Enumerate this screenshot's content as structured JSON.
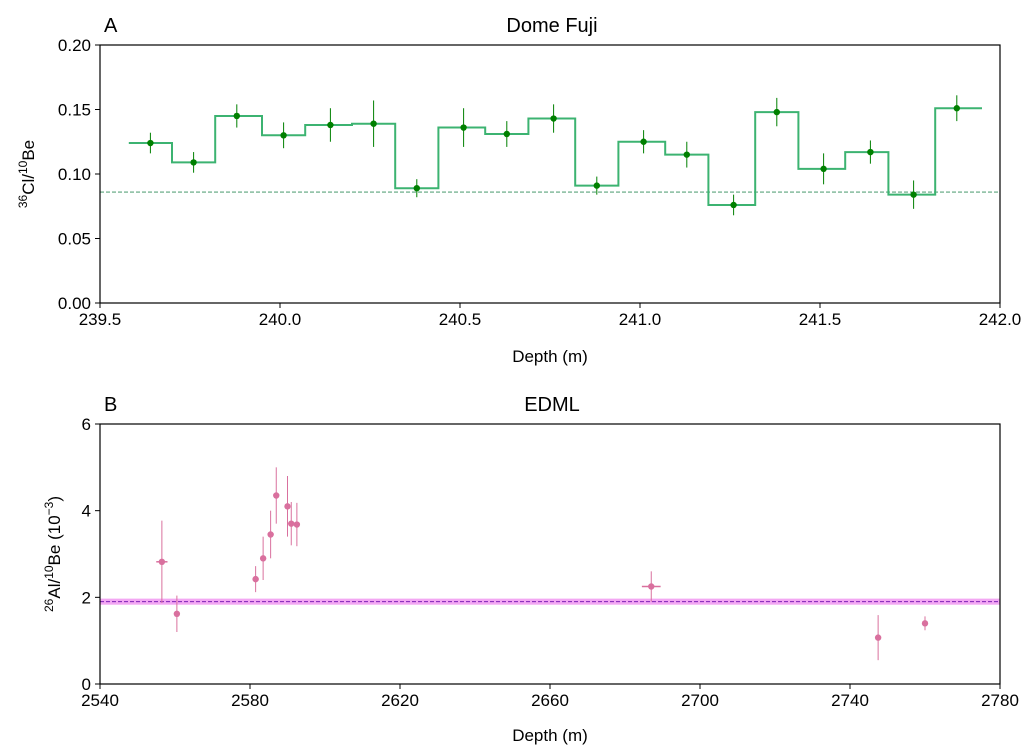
{
  "chart_data": [
    {
      "panel_label": "A",
      "type": "step-errorbar",
      "title": "Dome Fuji",
      "xlabel": "Depth (m)",
      "ylabel": {
        "sup1": "36",
        "base1": "Cl/",
        "sup2": "10",
        "base2": "Be",
        "suffix": ""
      },
      "xlim": [
        239.5,
        242.0
      ],
      "ylim": [
        0.0,
        0.2
      ],
      "xticks": [
        {
          "value": 239.5,
          "label": "239.5"
        },
        {
          "value": 240.0,
          "label": "240.0"
        },
        {
          "value": 240.5,
          "label": "240.5"
        },
        {
          "value": 241.0,
          "label": "241.0"
        },
        {
          "value": 241.5,
          "label": "241.5"
        },
        {
          "value": 242.0,
          "label": "242.0"
        }
      ],
      "yticks": [
        {
          "value": 0.0,
          "label": "0.00"
        },
        {
          "value": 0.05,
          "label": "0.05"
        },
        {
          "value": 0.1,
          "label": "0.10"
        },
        {
          "value": 0.15,
          "label": "0.15"
        },
        {
          "value": 0.2,
          "label": "0.20"
        }
      ],
      "reference_line": 0.086,
      "step_color": "#3cb371",
      "point_color": "#008000",
      "reference_color": "#2e8b57",
      "steps": [
        {
          "x0": 239.58,
          "x1": 239.7,
          "y": 0.124
        },
        {
          "x0": 239.7,
          "x1": 239.82,
          "y": 0.109
        },
        {
          "x0": 239.82,
          "x1": 239.95,
          "y": 0.145
        },
        {
          "x0": 239.95,
          "x1": 240.07,
          "y": 0.13
        },
        {
          "x0": 240.07,
          "x1": 240.2,
          "y": 0.138
        },
        {
          "x0": 240.2,
          "x1": 240.32,
          "y": 0.139
        },
        {
          "x0": 240.32,
          "x1": 240.44,
          "y": 0.089
        },
        {
          "x0": 240.44,
          "x1": 240.57,
          "y": 0.136
        },
        {
          "x0": 240.57,
          "x1": 240.69,
          "y": 0.131
        },
        {
          "x0": 240.69,
          "x1": 240.82,
          "y": 0.143
        },
        {
          "x0": 240.82,
          "x1": 240.94,
          "y": 0.091
        },
        {
          "x0": 240.94,
          "x1": 241.07,
          "y": 0.125
        },
        {
          "x0": 241.07,
          "x1": 241.19,
          "y": 0.115
        },
        {
          "x0": 241.19,
          "x1": 241.32,
          "y": 0.076
        },
        {
          "x0": 241.32,
          "x1": 241.44,
          "y": 0.148
        },
        {
          "x0": 241.44,
          "x1": 241.57,
          "y": 0.104
        },
        {
          "x0": 241.57,
          "x1": 241.69,
          "y": 0.117
        },
        {
          "x0": 241.69,
          "x1": 241.82,
          "y": 0.084
        },
        {
          "x0": 241.82,
          "x1": 241.95,
          "y": 0.151
        }
      ],
      "points": [
        {
          "x": 239.64,
          "y": 0.124,
          "err": 0.008
        },
        {
          "x": 239.76,
          "y": 0.109,
          "err": 0.008
        },
        {
          "x": 239.88,
          "y": 0.145,
          "err": 0.009
        },
        {
          "x": 240.01,
          "y": 0.13,
          "err": 0.01
        },
        {
          "x": 240.14,
          "y": 0.138,
          "err": 0.013
        },
        {
          "x": 240.26,
          "y": 0.139,
          "err": 0.018
        },
        {
          "x": 240.38,
          "y": 0.089,
          "err": 0.007
        },
        {
          "x": 240.51,
          "y": 0.136,
          "err": 0.015
        },
        {
          "x": 240.63,
          "y": 0.131,
          "err": 0.01
        },
        {
          "x": 240.76,
          "y": 0.143,
          "err": 0.011
        },
        {
          "x": 240.88,
          "y": 0.091,
          "err": 0.007
        },
        {
          "x": 241.01,
          "y": 0.125,
          "err": 0.009
        },
        {
          "x": 241.13,
          "y": 0.115,
          "err": 0.01
        },
        {
          "x": 241.26,
          "y": 0.076,
          "err": 0.008
        },
        {
          "x": 241.38,
          "y": 0.148,
          "err": 0.011
        },
        {
          "x": 241.51,
          "y": 0.104,
          "err": 0.012
        },
        {
          "x": 241.64,
          "y": 0.117,
          "err": 0.009
        },
        {
          "x": 241.76,
          "y": 0.084,
          "err": 0.011
        },
        {
          "x": 241.88,
          "y": 0.151,
          "err": 0.01
        }
      ]
    },
    {
      "panel_label": "B",
      "type": "scatter-errorbar",
      "title": "EDML",
      "xlabel": "Depth (m)",
      "ylabel": {
        "sup1": "26",
        "base1": "Al/",
        "sup2": "10",
        "base2": "Be (10",
        "sup3": "−3",
        "suffix": ")"
      },
      "xlim": [
        2540,
        2780
      ],
      "ylim": [
        0,
        6
      ],
      "xticks": [
        {
          "value": 2540,
          "label": "2540"
        },
        {
          "value": 2580,
          "label": "2580"
        },
        {
          "value": 2620,
          "label": "2620"
        },
        {
          "value": 2660,
          "label": "2660"
        },
        {
          "value": 2700,
          "label": "2700"
        },
        {
          "value": 2740,
          "label": "2740"
        },
        {
          "value": 2780,
          "label": "2780"
        }
      ],
      "yticks": [
        {
          "value": 0,
          "label": "0"
        },
        {
          "value": 2,
          "label": "2"
        },
        {
          "value": 4,
          "label": "4"
        },
        {
          "value": 6,
          "label": "6"
        }
      ],
      "reference_line": 1.9,
      "reference_band": [
        1.83,
        1.97
      ],
      "point_color": "#d9709e",
      "band_color": "#ee82ee",
      "reference_color": "#6a0dad",
      "points": [
        {
          "x": 2556.5,
          "y": 2.82,
          "err": 0.95,
          "xerr": 1.5
        },
        {
          "x": 2560.5,
          "y": 1.62,
          "err": 0.42,
          "xerr": 0.5
        },
        {
          "x": 2581.5,
          "y": 2.42,
          "err": 0.3,
          "xerr": 0.8
        },
        {
          "x": 2583.5,
          "y": 2.9,
          "err": 0.5,
          "xerr": 0.8
        },
        {
          "x": 2585.5,
          "y": 3.45,
          "err": 0.55,
          "xerr": 0.8
        },
        {
          "x": 2587.0,
          "y": 4.35,
          "err": 0.65,
          "xerr": 0.5
        },
        {
          "x": 2590.0,
          "y": 4.1,
          "err": 0.7,
          "xerr": 0.5
        },
        {
          "x": 2591.0,
          "y": 3.7,
          "err": 0.5,
          "xerr": 0.5
        },
        {
          "x": 2592.5,
          "y": 3.68,
          "err": 0.5,
          "xerr": 0.5
        },
        {
          "x": 2687.0,
          "y": 2.25,
          "err": 0.35,
          "xerr": 2.5
        },
        {
          "x": 2747.5,
          "y": 1.07,
          "err": 0.52,
          "xerr": 0.5
        },
        {
          "x": 2760.0,
          "y": 1.4,
          "err": 0.16,
          "xerr": 0.5
        }
      ]
    }
  ]
}
